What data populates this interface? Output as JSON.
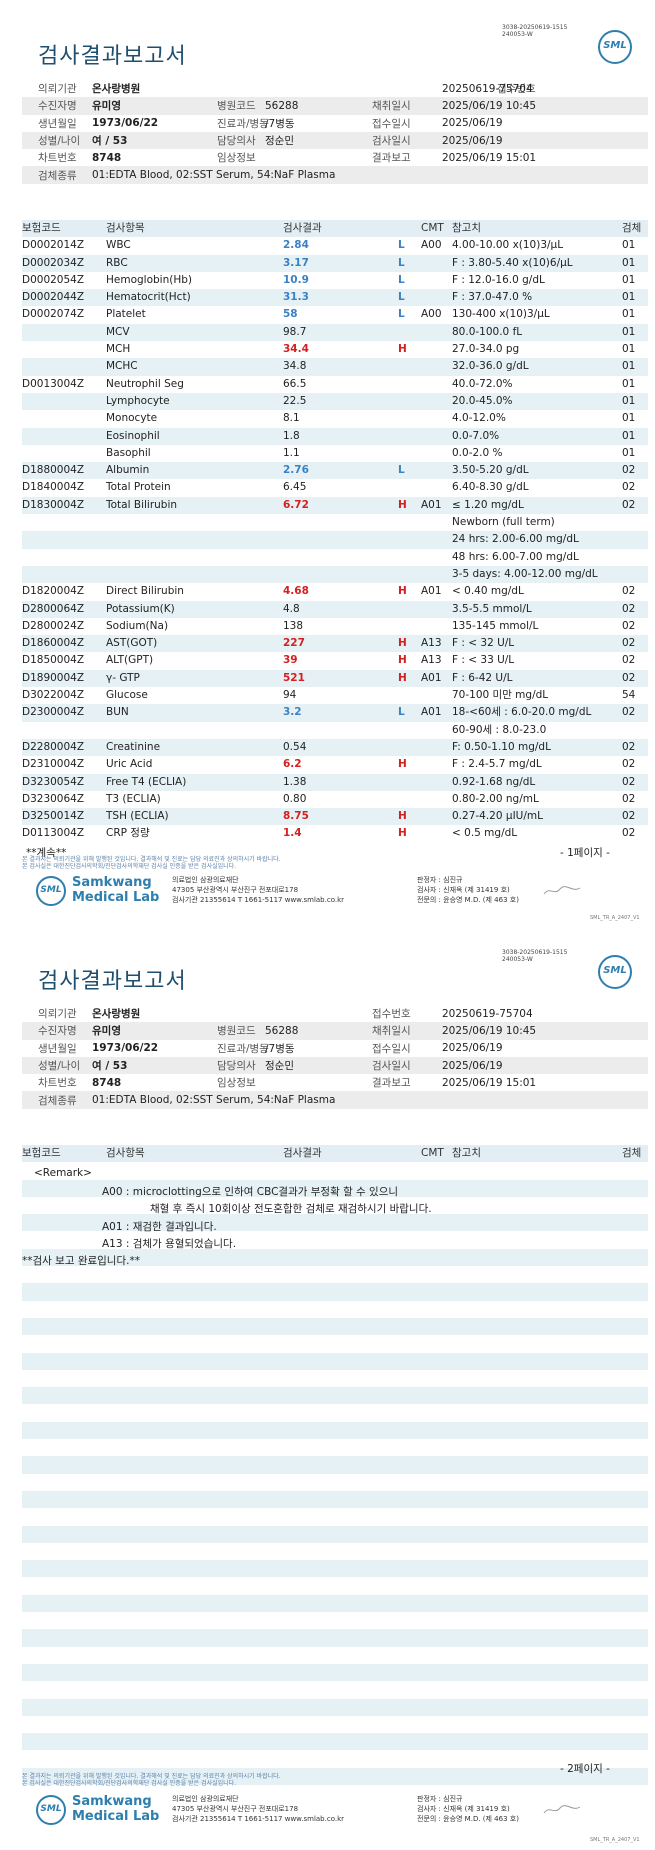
{
  "report": {
    "top_code_line1": "3038-20250619-1515",
    "top_code_line2": "240053-W",
    "title": "검사결과보고서",
    "logo_text": "SML"
  },
  "patient_info": {
    "institution_label": "의뢰기관",
    "institution": "온사랑병원",
    "receipt_no_label": "접수번호",
    "receipt_no": "20250619-75704",
    "name_label": "수진자명",
    "name": "유미영",
    "hospital_code_label": "병원코드",
    "hospital_code": "56288",
    "collect_date_label": "채취일시",
    "collect_date": "2025/06/19 10:45",
    "birth_label": "생년월일",
    "birth": "1973/06/22",
    "dept_label": "진료과/병동",
    "dept": "/7병동",
    "receipt_date_label": "접수일시",
    "receipt_date": "2025/06/19",
    "sex_age_label": "성별/나이",
    "sex_age": "여 / 53",
    "doctor_label": "담당의사",
    "doctor": "정순민",
    "test_date_label": "검사일시",
    "test_date": "2025/06/19",
    "chart_label": "차트번호",
    "chart": "8748",
    "clinical_label": "임상정보",
    "clinical": "",
    "report_date_label": "결과보고",
    "report_date": "2025/06/19 15:01",
    "specimen_label": "검체종류",
    "specimen": "01:EDTA Blood, 02:SST Serum, 54:NaF Plasma"
  },
  "table_header": {
    "code": "보험코드",
    "name": "검사항목",
    "result": "검사결과",
    "cmt": "CMT",
    "ref": "참고치",
    "spec": "검체"
  },
  "results": [
    {
      "code": "D0002014Z",
      "name": "WBC",
      "result": "2.84",
      "flag": "L",
      "cmt": "A00",
      "ref": "4.00-10.00 x(10)3/μL",
      "spec": "01"
    },
    {
      "code": "D0002034Z",
      "name": "RBC",
      "result": "3.17",
      "flag": "L",
      "cmt": "",
      "ref": "F : 3.80-5.40 x(10)6/μL",
      "spec": "01"
    },
    {
      "code": "D0002054Z",
      "name": "Hemoglobin(Hb)",
      "result": "10.9",
      "flag": "L",
      "cmt": "",
      "ref": "F : 12.0-16.0 g/dL",
      "spec": "01"
    },
    {
      "code": "D0002044Z",
      "name": "Hematocrit(Hct)",
      "result": "31.3",
      "flag": "L",
      "cmt": "",
      "ref": "F : 37.0-47.0 %",
      "spec": "01"
    },
    {
      "code": "D0002074Z",
      "name": "Platelet",
      "result": "58",
      "flag": "L",
      "cmt": "A00",
      "ref": "130-400 x(10)3/μL",
      "spec": "01"
    },
    {
      "code": "",
      "name": "MCV",
      "result": "98.7",
      "flag": "",
      "cmt": "",
      "ref": "80.0-100.0 fL",
      "spec": "01"
    },
    {
      "code": "",
      "name": "MCH",
      "result": "34.4",
      "flag": "H",
      "cmt": "",
      "ref": "27.0-34.0 pg",
      "spec": "01"
    },
    {
      "code": "",
      "name": "MCHC",
      "result": "34.8",
      "flag": "",
      "cmt": "",
      "ref": "32.0-36.0 g/dL",
      "spec": "01"
    },
    {
      "code": "D0013004Z",
      "name": "Neutrophil Seg",
      "result": "66.5",
      "flag": "",
      "cmt": "",
      "ref": "40.0-72.0%",
      "spec": "01"
    },
    {
      "code": "",
      "name": "Lymphocyte",
      "result": "22.5",
      "flag": "",
      "cmt": "",
      "ref": "20.0-45.0%",
      "spec": "01"
    },
    {
      "code": "",
      "name": "Monocyte",
      "result": "8.1",
      "flag": "",
      "cmt": "",
      "ref": "4.0-12.0%",
      "spec": "01"
    },
    {
      "code": "",
      "name": "Eosinophil",
      "result": "1.8",
      "flag": "",
      "cmt": "",
      "ref": "0.0-7.0%",
      "spec": "01"
    },
    {
      "code": "",
      "name": "Basophil",
      "result": "1.1",
      "flag": "",
      "cmt": "",
      "ref": "0.0-2.0 %",
      "spec": "01"
    },
    {
      "code": "D1880004Z",
      "name": "Albumin",
      "result": "2.76",
      "flag": "L",
      "cmt": "",
      "ref": "3.50-5.20 g/dL",
      "spec": "02"
    },
    {
      "code": "D1840004Z",
      "name": "Total Protein",
      "result": "6.45",
      "flag": "",
      "cmt": "",
      "ref": "6.40-8.30 g/dL",
      "spec": "02"
    },
    {
      "code": "D1830004Z",
      "name": "Total Bilirubin",
      "result": "6.72",
      "flag": "H",
      "cmt": "A01",
      "ref": "≤ 1.20 mg/dL",
      "spec": "02"
    },
    {
      "code": "",
      "name": "",
      "result": "",
      "flag": "",
      "cmt": "",
      "ref": "Newborn (full term)",
      "spec": ""
    },
    {
      "code": "",
      "name": "",
      "result": "",
      "flag": "",
      "cmt": "",
      "ref": "24 hrs: 2.00-6.00 mg/dL",
      "spec": ""
    },
    {
      "code": "",
      "name": "",
      "result": "",
      "flag": "",
      "cmt": "",
      "ref": "48 hrs: 6.00-7.00 mg/dL",
      "spec": ""
    },
    {
      "code": "",
      "name": "",
      "result": "",
      "flag": "",
      "cmt": "",
      "ref": "3-5 days: 4.00-12.00 mg/dL",
      "spec": ""
    },
    {
      "code": "D1820004Z",
      "name": "Direct Bilirubin",
      "result": "4.68",
      "flag": "H",
      "cmt": "A01",
      "ref": "< 0.40 mg/dL",
      "spec": "02"
    },
    {
      "code": "D2800064Z",
      "name": "Potassium(K)",
      "result": "4.8",
      "flag": "",
      "cmt": "",
      "ref": "3.5-5.5 mmol/L",
      "spec": "02"
    },
    {
      "code": "D2800024Z",
      "name": "Sodium(Na)",
      "result": "138",
      "flag": "",
      "cmt": "",
      "ref": "135-145 mmol/L",
      "spec": "02"
    },
    {
      "code": "D1860004Z",
      "name": "AST(GOT)",
      "result": "227",
      "flag": "H",
      "cmt": "A13",
      "ref": "F : < 32 U/L",
      "spec": "02"
    },
    {
      "code": "D1850004Z",
      "name": "ALT(GPT)",
      "result": "39",
      "flag": "H",
      "cmt": "A13",
      "ref": "F : < 33 U/L",
      "spec": "02"
    },
    {
      "code": "D1890004Z",
      "name": "γ- GTP",
      "result": "521",
      "flag": "H",
      "cmt": "A01",
      "ref": "F : 6-42 U/L",
      "spec": "02"
    },
    {
      "code": "D3022004Z",
      "name": "Glucose",
      "result": "94",
      "flag": "",
      "cmt": "",
      "ref": "70-100 미만 mg/dL",
      "spec": "54"
    },
    {
      "code": "D2300004Z",
      "name": "BUN",
      "result": "3.2",
      "flag": "L",
      "cmt": "A01",
      "ref": "18-<60세 : 6.0-20.0 mg/dL",
      "spec": "02"
    },
    {
      "code": "",
      "name": "",
      "result": "",
      "flag": "",
      "cmt": "",
      "ref": "60-90세 : 8.0-23.0",
      "spec": ""
    },
    {
      "code": "D2280004Z",
      "name": "Creatinine",
      "result": "0.54",
      "flag": "",
      "cmt": "",
      "ref": "F: 0.50-1.10 mg/dL",
      "spec": "02"
    },
    {
      "code": "D2310004Z",
      "name": "Uric Acid",
      "result": "6.2",
      "flag": "H",
      "cmt": "",
      "ref": "F : 2.4-5.7 mg/dL",
      "spec": "02"
    },
    {
      "code": "D3230054Z",
      "name": "Free T4 (ECLIA)",
      "result": "1.38",
      "flag": "",
      "cmt": "",
      "ref": "0.92-1.68 ng/dL",
      "spec": "02"
    },
    {
      "code": "D3230064Z",
      "name": "T3 (ECLIA)",
      "result": "0.80",
      "flag": "",
      "cmt": "",
      "ref": "0.80-2.00 ng/mL",
      "spec": "02"
    },
    {
      "code": "D3250014Z",
      "name": "TSH (ECLIA)",
      "result": "8.75",
      "flag": "H",
      "cmt": "",
      "ref": "0.27-4.20 μIU/mL",
      "spec": "02"
    },
    {
      "code": "D0113004Z",
      "name": "CRP 정량",
      "result": "1.4",
      "flag": "H",
      "cmt": "",
      "ref": "< 0.5 mg/dL",
      "spec": "02"
    }
  ],
  "page1": {
    "continued": "**계속**",
    "page_no": "- 1페이지 -"
  },
  "page2": {
    "remark_title": "<Remark>",
    "remarks": [
      "A00 : microclotting으로 인하여 CBC결과가 부정확 할 수 있으니",
      "채혈 후 즉시 10회이상 전도혼합한 검체로 재검하시기 바랍니다.",
      "A01 : 재검한 결과입니다.",
      "A13 : 검체가 용혈되었습니다."
    ],
    "complete": "**검사 보고 완료입니다.**",
    "page_no": "- 2페이지 -"
  },
  "fineprint": {
    "line1": "본 결과지는 의뢰기관을 위해 발행된 것입니다. 결과해석 및 진료는 담당 의료진과 상의하시기 바랍니다.",
    "line2": "본 검사실은 대한진단검사의학회/진단검사의학재단 검사실 인증을 받은 검사실입니다."
  },
  "footer": {
    "logo_text": "SML",
    "name_line1": "Samkwang",
    "name_line2": "Medical Lab",
    "addr1": "의료법인 삼광의료재단",
    "addr2": "47305 부산광역시 부산진구 전포대로178",
    "addr3": "검사기관 21355614 T 1661-5117 www.smlab.co.kr",
    "sign1": "판정자 : 심진규",
    "sign2": "검사자 : 신재옥 (제 31419 호)",
    "sign3": "전문의 : 윤승영 M.D. (제 463 호)",
    "signature": "",
    "version": "SML_TR_A_2407_V1"
  }
}
